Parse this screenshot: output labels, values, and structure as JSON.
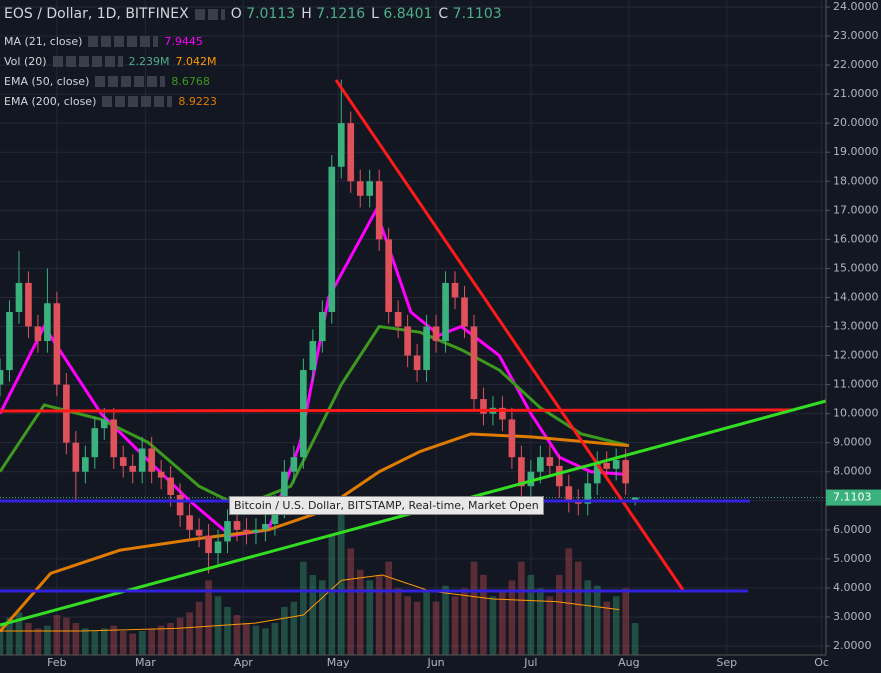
{
  "header": {
    "symbol": "EOS / Dollar, 1D, BITFINEX",
    "open": "7.0113",
    "high": "7.1216",
    "low": "6.8401",
    "close": "7.1103"
  },
  "indicators": [
    {
      "name": "MA (21, close)",
      "values": [
        "7.9445"
      ]
    },
    {
      "name": "Vol (20)",
      "values": [
        "2.239M",
        "7.042M"
      ]
    },
    {
      "name": "EMA (50, close)",
      "values": [
        "8.6768"
      ]
    },
    {
      "name": "EMA (200, close)",
      "values": [
        "8.9223"
      ]
    }
  ],
  "tooltip": "Bitcoin / U.S. Dollar, BITSTAMP, Real-time, Market Open",
  "chart_data": {
    "type": "candlestick",
    "xlim": [
      14,
      275.4
    ],
    "xticks": [
      {
        "value": 32,
        "label": "Feb"
      },
      {
        "value": 60,
        "label": "Mar"
      },
      {
        "value": 91,
        "label": "Apr"
      },
      {
        "value": 121,
        "label": "May"
      },
      {
        "value": 152,
        "label": "Jun"
      },
      {
        "value": 182,
        "label": "Jul"
      },
      {
        "value": 213,
        "label": "Aug"
      },
      {
        "value": 244,
        "label": "Sep"
      },
      {
        "value": 274,
        "label": "Oc"
      }
    ],
    "ylim": [
      2,
      24
    ],
    "yticks": [
      {
        "value": 2,
        "label": "2.0000"
      },
      {
        "value": 3,
        "label": "3.0000"
      },
      {
        "value": 4,
        "label": "4.0000"
      },
      {
        "value": 5,
        "label": "5.0000"
      },
      {
        "value": 6,
        "label": "6.0000"
      },
      {
        "value": 7,
        "label": "7.0000"
      },
      {
        "value": 8,
        "label": "8.0000"
      },
      {
        "value": 9,
        "label": "9.0000"
      },
      {
        "value": 10,
        "label": "10.0000"
      },
      {
        "value": 11,
        "label": "11.0000"
      },
      {
        "value": 12,
        "label": "12.0000"
      },
      {
        "value": 13,
        "label": "13.0000"
      },
      {
        "value": 14,
        "label": "14.0000"
      },
      {
        "value": 15,
        "label": "15.0000"
      },
      {
        "value": 16,
        "label": "16.0000"
      },
      {
        "value": 17,
        "label": "17.0000"
      },
      {
        "value": 18,
        "label": "18.0000"
      },
      {
        "value": 19,
        "label": "19.0000"
      },
      {
        "value": 20,
        "label": "20.0000"
      },
      {
        "value": 21,
        "label": "21.0000"
      },
      {
        "value": 22,
        "label": "22.0000"
      },
      {
        "value": 23,
        "label": "23.0000"
      },
      {
        "value": 24,
        "label": "24.0000"
      }
    ],
    "y2lim": [
      0,
      60
    ],
    "grid": true,
    "up_color": "#3bb27e",
    "down_color": "#e0525b",
    "last_price": {
      "value": 7.1103,
      "label": "7.1103"
    },
    "x": [
      14,
      17,
      20,
      23,
      26,
      29,
      32,
      35,
      38,
      41,
      44,
      47,
      50,
      53,
      56,
      59,
      62,
      65,
      68,
      71,
      74,
      77,
      80,
      83,
      86,
      89,
      92,
      95,
      98,
      101,
      104,
      107,
      110,
      113,
      116,
      119,
      122,
      125,
      128,
      131,
      134,
      137,
      140,
      143,
      146,
      149,
      152,
      155,
      158,
      161,
      164,
      167,
      170,
      173,
      176,
      179,
      182,
      185,
      188,
      191,
      194,
      197,
      200,
      203,
      206,
      209,
      212,
      215
    ],
    "open": [
      11.0,
      11.5,
      13.5,
      14.5,
      13.0,
      12.5,
      13.8,
      11.0,
      9.0,
      8.0,
      8.5,
      9.5,
      9.8,
      8.5,
      8.2,
      8.0,
      8.8,
      8.0,
      7.8,
      7.2,
      6.5,
      6.0,
      5.8,
      5.2,
      5.6,
      6.3,
      6.0,
      5.9,
      6.0,
      6.2,
      6.8,
      8.0,
      8.5,
      11.5,
      12.5,
      13.5,
      18.5,
      20.0,
      18.0,
      17.5,
      18.0,
      16.0,
      13.5,
      13.0,
      12.0,
      11.5,
      13.0,
      12.5,
      14.5,
      14.0,
      13.0,
      10.5,
      10.0,
      10.2,
      9.8,
      8.5,
      7.5,
      8.0,
      8.5,
      8.2,
      7.5,
      7.0,
      6.9,
      7.6,
      8.3,
      8.1,
      8.4,
      7.0113
    ],
    "high": [
      11.9,
      13.9,
      15.6,
      14.9,
      13.4,
      15.0,
      14.2,
      11.4,
      9.4,
      8.9,
      9.9,
      10.2,
      10.2,
      8.9,
      8.6,
      9.2,
      9.2,
      8.4,
      8.2,
      7.6,
      6.9,
      6.4,
      6.2,
      6.0,
      6.7,
      6.7,
      6.4,
      6.4,
      6.6,
      7.2,
      8.4,
      8.9,
      11.9,
      12.9,
      13.9,
      18.9,
      21.5,
      20.4,
      18.4,
      18.4,
      18.4,
      16.4,
      13.9,
      13.4,
      12.4,
      13.4,
      13.4,
      14.9,
      14.9,
      14.4,
      13.4,
      10.9,
      10.6,
      10.6,
      10.2,
      8.9,
      8.4,
      8.9,
      8.9,
      8.6,
      7.9,
      7.4,
      8.0,
      8.7,
      8.7,
      8.8,
      8.8,
      7.1216
    ],
    "low": [
      10.6,
      11.1,
      13.1,
      12.6,
      12.1,
      12.1,
      10.6,
      8.6,
      7.0,
      7.6,
      8.1,
      9.1,
      8.1,
      7.8,
      7.6,
      7.6,
      7.6,
      7.4,
      6.8,
      6.1,
      5.6,
      5.4,
      4.5,
      4.8,
      5.2,
      5.6,
      5.5,
      5.5,
      5.6,
      5.8,
      6.4,
      7.6,
      8.1,
      11.1,
      12.1,
      13.1,
      18.1,
      17.6,
      17.1,
      17.1,
      15.6,
      13.1,
      12.6,
      11.6,
      11.1,
      11.1,
      12.1,
      12.1,
      13.6,
      12.6,
      10.1,
      9.6,
      9.6,
      9.4,
      8.1,
      7.1,
      7.1,
      7.6,
      7.8,
      7.1,
      6.6,
      6.5,
      6.5,
      7.2,
      7.7,
      7.7,
      7.2,
      6.8401
    ],
    "close": [
      11.5,
      13.5,
      14.5,
      13.0,
      12.5,
      13.8,
      11.0,
      9.0,
      8.0,
      8.5,
      9.5,
      9.8,
      8.5,
      8.2,
      8.0,
      8.8,
      8.0,
      7.8,
      7.2,
      6.5,
      6.0,
      5.8,
      5.2,
      5.6,
      6.3,
      6.0,
      5.9,
      6.0,
      6.2,
      6.8,
      8.0,
      8.5,
      11.5,
      12.5,
      13.5,
      18.5,
      20.0,
      18.0,
      17.5,
      18.0,
      16.0,
      13.5,
      13.0,
      12.0,
      11.5,
      13.0,
      12.5,
      14.5,
      14.0,
      13.0,
      10.5,
      10.0,
      10.2,
      9.8,
      8.5,
      7.5,
      8.0,
      8.5,
      8.2,
      7.5,
      7.0,
      6.9,
      7.6,
      8.3,
      8.1,
      8.4,
      7.6,
      7.1103
    ],
    "volume": [
      12,
      14,
      16,
      12,
      10,
      11,
      15,
      14,
      12,
      10,
      9,
      10,
      11,
      9,
      8,
      9,
      10,
      11,
      12,
      14,
      16,
      20,
      28,
      22,
      18,
      15,
      12,
      11,
      10,
      12,
      18,
      20,
      35,
      30,
      28,
      45,
      55,
      40,
      32,
      28,
      30,
      35,
      25,
      22,
      20,
      24,
      20,
      26,
      22,
      25,
      35,
      30,
      22,
      24,
      28,
      35,
      30,
      25,
      22,
      30,
      40,
      35,
      28,
      26,
      20,
      22,
      25,
      12
    ],
    "series": [
      {
        "name": "MA (21, close)",
        "color": "#ff00ff",
        "width": 3,
        "x": [
          14,
          28,
          46,
          58,
          74,
          87,
          99,
          109,
          118,
          133,
          144,
          153,
          160,
          172,
          182,
          191,
          201,
          213
        ],
        "values": [
          10.0,
          13.0,
          10.0,
          8.7,
          7.0,
          5.8,
          6.0,
          9.0,
          14.0,
          17.0,
          13.5,
          12.7,
          13.0,
          12.0,
          10.0,
          8.5,
          8.0,
          7.9
        ]
      },
      {
        "name": "EMA (50, close)",
        "color": "#3c9a1e",
        "width": 3,
        "x": [
          14,
          28,
          46,
          61,
          77,
          90,
          106,
          122,
          134,
          147,
          160,
          172,
          185,
          198,
          213
        ],
        "values": [
          8.0,
          10.3,
          9.8,
          9.0,
          7.5,
          6.8,
          7.5,
          11.0,
          13.0,
          12.8,
          12.2,
          11.5,
          10.2,
          9.3,
          8.9
        ]
      },
      {
        "name": "EMA (200, close)",
        "color": "#e07b00",
        "width": 3,
        "x": [
          14,
          30,
          52,
          77,
          99,
          115,
          134,
          147,
          163,
          182,
          213
        ],
        "values": [
          2.5,
          4.5,
          5.3,
          5.7,
          6.0,
          6.6,
          8.0,
          8.7,
          9.3,
          9.2,
          8.9
        ]
      },
      {
        "name": "Vol (20)",
        "color": "#ff9900",
        "width": 1,
        "axis": "y2",
        "x": [
          14,
          40,
          70,
          95,
          110,
          122,
          135,
          150,
          170,
          190,
          210
        ],
        "values": [
          9,
          9,
          10,
          12,
          15,
          28,
          30,
          24,
          21,
          20,
          17
        ]
      }
    ]
  }
}
